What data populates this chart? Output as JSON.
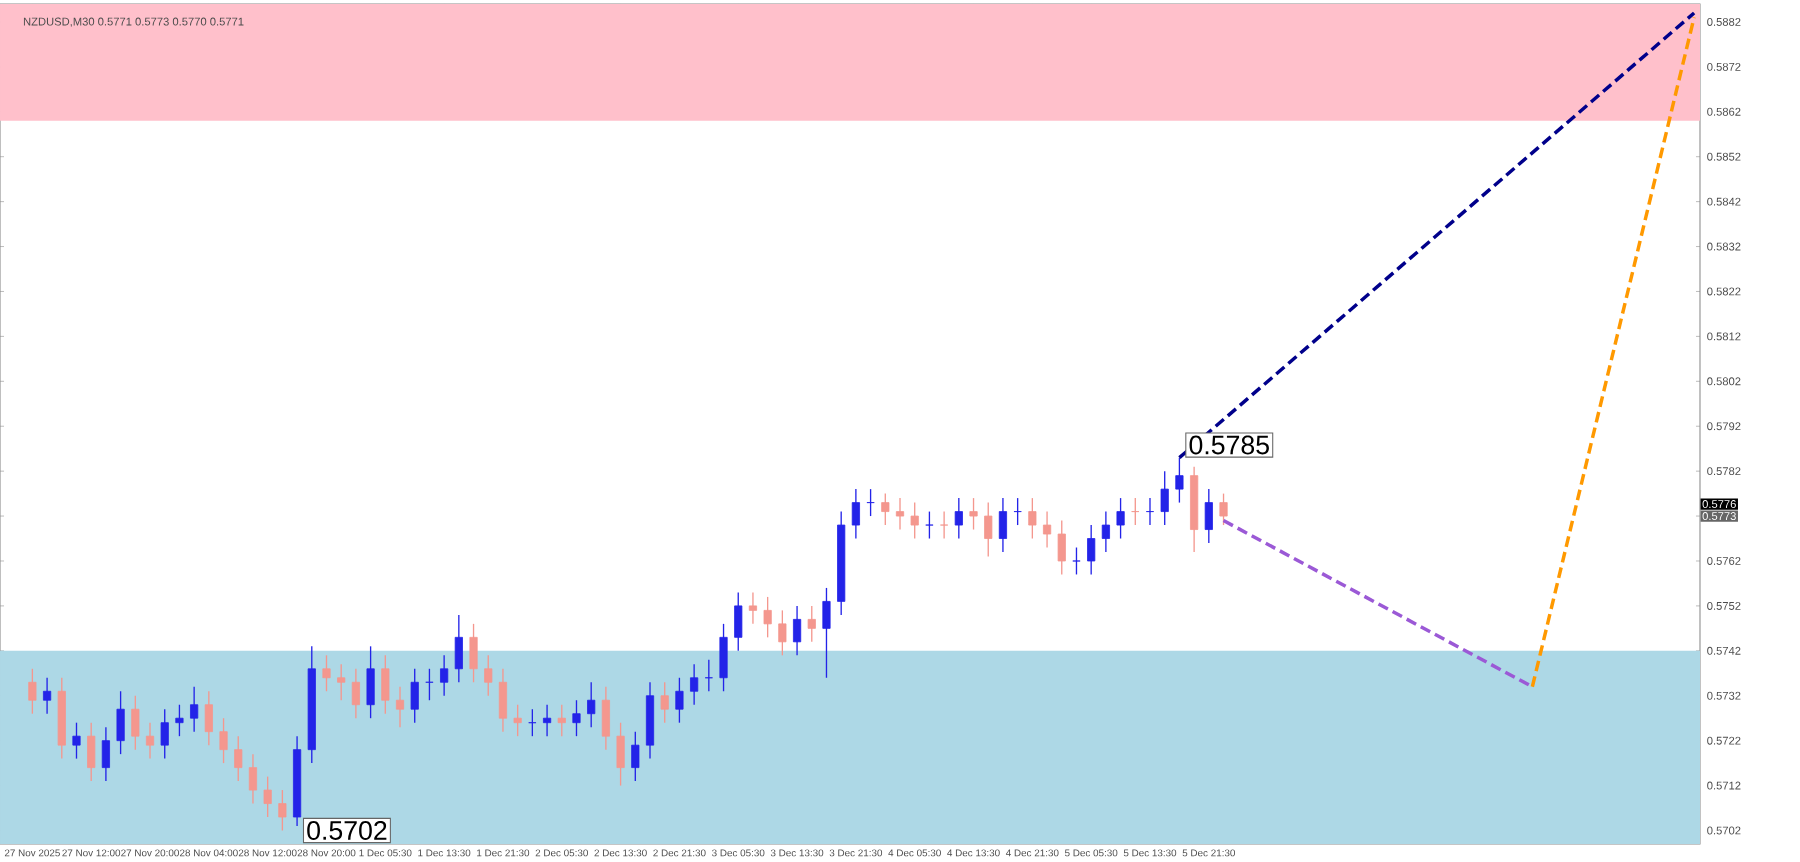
{
  "chart_data": {
    "type": "candlestick",
    "title": "NZDUSD,M30  0.5771 0.5773 0.5770 0.5771",
    "categories": [
      "27 Nov 2025",
      null,
      null,
      null,
      "27 Nov 12:00",
      null,
      null,
      null,
      "27 Nov 20:00",
      null,
      null,
      null,
      "28 Nov 04:00",
      null,
      null,
      null,
      "28 Nov 12:00",
      null,
      null,
      null,
      "28 Nov 20:00",
      null,
      null,
      null,
      "1 Dec 05:30",
      null,
      null,
      null,
      "1 Dec 13:30",
      null,
      null,
      null,
      "1 Dec 21:30",
      null,
      null,
      null,
      "2 Dec 05:30",
      null,
      null,
      null,
      "2 Dec 13:30",
      null,
      null,
      null,
      "2 Dec 21:30",
      null,
      null,
      null,
      "3 Dec 05:30",
      null,
      null,
      null,
      "3 Dec 13:30",
      null,
      null,
      null,
      "3 Dec 21:30",
      null,
      null,
      null,
      "4 Dec 05:30",
      null,
      null,
      null,
      "4 Dec 13:30",
      null,
      null,
      null,
      "4 Dec 21:30",
      null,
      null,
      null,
      "5 Dec 05:30",
      null,
      null,
      null,
      "5 Dec 13:30",
      null,
      null,
      null,
      "5 Dec 21:30",
      null,
      null,
      null,
      null,
      null,
      null,
      null,
      null,
      null,
      null,
      null,
      null,
      null,
      null,
      null,
      null,
      null,
      null,
      null,
      null,
      null,
      null,
      null,
      null,
      null,
      null,
      null,
      null,
      null,
      null,
      null,
      null,
      null
    ],
    "ohlc": [
      [
        0.5735,
        0.5738,
        0.5728,
        0.5731
      ],
      [
        0.5731,
        0.5736,
        0.5728,
        0.5733
      ],
      [
        0.5733,
        0.5736,
        0.5718,
        0.5721
      ],
      [
        0.5721,
        0.5726,
        0.5718,
        0.5723
      ],
      [
        0.5723,
        0.5726,
        0.5713,
        0.5716
      ],
      [
        0.5716,
        0.5725,
        0.5713,
        0.5722
      ],
      [
        0.5722,
        0.5733,
        0.5719,
        0.5729
      ],
      [
        0.5729,
        0.5732,
        0.572,
        0.5723
      ],
      [
        0.5723,
        0.5726,
        0.5718,
        0.5721
      ],
      [
        0.5721,
        0.5729,
        0.5718,
        0.5726
      ],
      [
        0.5726,
        0.573,
        0.5723,
        0.5727
      ],
      [
        0.5727,
        0.5734,
        0.5724,
        0.573
      ],
      [
        0.573,
        0.5733,
        0.5721,
        0.5724
      ],
      [
        0.5724,
        0.5727,
        0.5717,
        0.572
      ],
      [
        0.572,
        0.5723,
        0.5713,
        0.5716
      ],
      [
        0.5716,
        0.5719,
        0.5708,
        0.5711
      ],
      [
        0.5711,
        0.5714,
        0.5705,
        0.5708
      ],
      [
        0.5708,
        0.5711,
        0.5702,
        0.5705
      ],
      [
        0.5705,
        0.5723,
        0.5703,
        0.572
      ],
      [
        0.572,
        0.5743,
        0.5717,
        0.5738
      ],
      [
        0.5738,
        0.5741,
        0.5733,
        0.5736
      ],
      [
        0.5736,
        0.5739,
        0.5731,
        0.5735
      ],
      [
        0.5735,
        0.5738,
        0.5727,
        0.573
      ],
      [
        0.573,
        0.5743,
        0.5727,
        0.5738
      ],
      [
        0.5738,
        0.5741,
        0.5728,
        0.5731
      ],
      [
        0.5731,
        0.5734,
        0.5725,
        0.5729
      ],
      [
        0.5729,
        0.5738,
        0.5726,
        0.5735
      ],
      [
        0.5735,
        0.5738,
        0.5731,
        0.5735
      ],
      [
        0.5735,
        0.5741,
        0.5732,
        0.5738
      ],
      [
        0.5738,
        0.575,
        0.5735,
        0.5745
      ],
      [
        0.5745,
        0.5748,
        0.5735,
        0.5738
      ],
      [
        0.5738,
        0.5741,
        0.5732,
        0.5735
      ],
      [
        0.5735,
        0.5738,
        0.5724,
        0.5727
      ],
      [
        0.5727,
        0.573,
        0.5723,
        0.5726
      ],
      [
        0.5726,
        0.5729,
        0.5723,
        0.5726
      ],
      [
        0.5726,
        0.573,
        0.5723,
        0.5727
      ],
      [
        0.5727,
        0.573,
        0.5723,
        0.5726
      ],
      [
        0.5726,
        0.5731,
        0.5723,
        0.5728
      ],
      [
        0.5728,
        0.5735,
        0.5725,
        0.5731
      ],
      [
        0.5731,
        0.5734,
        0.572,
        0.5723
      ],
      [
        0.5723,
        0.5726,
        0.5712,
        0.5716
      ],
      [
        0.5716,
        0.5724,
        0.5713,
        0.5721
      ],
      [
        0.5721,
        0.5735,
        0.5718,
        0.5732
      ],
      [
        0.5732,
        0.5735,
        0.5726,
        0.5729
      ],
      [
        0.5729,
        0.5736,
        0.5726,
        0.5733
      ],
      [
        0.5733,
        0.5739,
        0.573,
        0.5736
      ],
      [
        0.5736,
        0.574,
        0.5733,
        0.5736
      ],
      [
        0.5736,
        0.5748,
        0.5733,
        0.5745
      ],
      [
        0.5745,
        0.5755,
        0.5742,
        0.5752
      ],
      [
        0.5752,
        0.5755,
        0.5748,
        0.5751
      ],
      [
        0.5751,
        0.5754,
        0.5745,
        0.5748
      ],
      [
        0.5748,
        0.5751,
        0.5741,
        0.5744
      ],
      [
        0.5744,
        0.5752,
        0.5741,
        0.5749
      ],
      [
        0.5749,
        0.5752,
        0.5744,
        0.5747
      ],
      [
        0.5747,
        0.5756,
        0.5736,
        0.5753
      ],
      [
        0.5753,
        0.5773,
        0.575,
        0.577
      ],
      [
        0.577,
        0.5778,
        0.5767,
        0.5775
      ],
      [
        0.5775,
        0.5778,
        0.5772,
        0.5775
      ],
      [
        0.5775,
        0.5777,
        0.577,
        0.5773
      ],
      [
        0.5773,
        0.5776,
        0.5769,
        0.5772
      ],
      [
        0.5772,
        0.5775,
        0.5767,
        0.577
      ],
      [
        0.577,
        0.5773,
        0.5767,
        0.577
      ],
      [
        0.577,
        0.5773,
        0.5767,
        0.577
      ],
      [
        0.577,
        0.5776,
        0.5767,
        0.5773
      ],
      [
        0.5773,
        0.5776,
        0.5769,
        0.5772
      ],
      [
        0.5772,
        0.5775,
        0.5763,
        0.5767
      ],
      [
        0.5767,
        0.5776,
        0.5764,
        0.5773
      ],
      [
        0.5773,
        0.5776,
        0.577,
        0.5773
      ],
      [
        0.5773,
        0.5776,
        0.5767,
        0.577
      ],
      [
        0.577,
        0.5773,
        0.5765,
        0.5768
      ],
      [
        0.5768,
        0.5771,
        0.5759,
        0.5762
      ],
      [
        0.5762,
        0.5765,
        0.5759,
        0.5762
      ],
      [
        0.5762,
        0.577,
        0.5759,
        0.5767
      ],
      [
        0.5767,
        0.5773,
        0.5764,
        0.577
      ],
      [
        0.577,
        0.5776,
        0.5767,
        0.5773
      ],
      [
        0.5773,
        0.5776,
        0.577,
        0.5773
      ],
      [
        0.5773,
        0.5776,
        0.577,
        0.5773
      ],
      [
        0.5773,
        0.5782,
        0.577,
        0.5778
      ],
      [
        0.5778,
        0.5785,
        0.5775,
        0.5781
      ],
      [
        0.5781,
        0.5783,
        0.5764,
        0.5769
      ],
      [
        0.5769,
        0.5778,
        0.5766,
        0.5775
      ],
      [
        0.5775,
        0.5777,
        0.577,
        0.5772
      ],
      null,
      null,
      null,
      null,
      null,
      null,
      null,
      null,
      null,
      null,
      null,
      null,
      null,
      null,
      null,
      null,
      null,
      null,
      null,
      null,
      null,
      null,
      null,
      null,
      null,
      null,
      null,
      null,
      null,
      null,
      null,
      null
    ],
    "colors": [
      "#f4978e",
      "#2323e8",
      "#f4978e",
      "#2323e8",
      "#f4978e",
      "#2323e8",
      "#2323e8",
      "#f4978e",
      "#f4978e",
      "#2323e8",
      "#2323e8",
      "#2323e8",
      "#f4978e",
      "#f4978e",
      "#f4978e",
      "#f4978e",
      "#f4978e",
      "#f4978e",
      "#2323e8",
      "#2323e8",
      "#f4978e",
      "#f4978e",
      "#f4978e",
      "#2323e8",
      "#f4978e",
      "#f4978e",
      "#2323e8",
      "#2323e8",
      "#2323e8",
      "#2323e8",
      "#f4978e",
      "#f4978e",
      "#f4978e",
      "#f4978e",
      "#2323e8",
      "#2323e8",
      "#f4978e",
      "#2323e8",
      "#2323e8",
      "#f4978e",
      "#f4978e",
      "#2323e8",
      "#2323e8",
      "#f4978e",
      "#2323e8",
      "#2323e8",
      "#2323e8",
      "#2323e8",
      "#2323e8",
      "#f4978e",
      "#f4978e",
      "#f4978e",
      "#2323e8",
      "#f4978e",
      "#2323e8",
      "#2323e8",
      "#2323e8",
      "#2323e8",
      "#f4978e",
      "#f4978e",
      "#f4978e",
      "#2323e8",
      "#f4978e",
      "#2323e8",
      "#f4978e",
      "#f4978e",
      "#2323e8",
      "#2323e8",
      "#f4978e",
      "#f4978e",
      "#f4978e",
      "#2323e8",
      "#2323e8",
      "#2323e8",
      "#2323e8",
      "#f4978e",
      "#2323e8",
      "#2323e8",
      "#2323e8",
      "#f4978e",
      "#2323e8",
      "#f4978e",
      null,
      null,
      null,
      null,
      null,
      null,
      null,
      null,
      null,
      null,
      null,
      null,
      null,
      null,
      null,
      null,
      null,
      null,
      null,
      null,
      null,
      null,
      null,
      null,
      null,
      null,
      null,
      null,
      null,
      null,
      null,
      null
    ],
    "series": [
      {
        "type": "line",
        "color": "#00008b",
        "line_style": "dashed",
        "values": [
          null,
          null,
          null,
          null,
          null,
          null,
          null,
          null,
          null,
          null,
          null,
          null,
          null,
          null,
          null,
          null,
          null,
          null,
          null,
          null,
          null,
          null,
          null,
          null,
          null,
          null,
          null,
          null,
          null,
          null,
          null,
          null,
          null,
          null,
          null,
          null,
          null,
          null,
          null,
          null,
          null,
          null,
          null,
          null,
          null,
          null,
          null,
          null,
          null,
          null,
          null,
          null,
          null,
          null,
          null,
          null,
          null,
          null,
          null,
          null,
          null,
          null,
          null,
          null,
          null,
          null,
          null,
          null,
          null,
          null,
          null,
          null,
          null,
          null,
          null,
          null,
          null,
          null,
          0.5785,
          null,
          null,
          null,
          null,
          null,
          null,
          null,
          null,
          null,
          null,
          null,
          null,
          null,
          null,
          null,
          null,
          null,
          null,
          null,
          null,
          null,
          null,
          null,
          null,
          null,
          null,
          null,
          null,
          null,
          null,
          null,
          null,
          null,
          null,
          0.5884
        ]
      },
      {
        "type": "line",
        "color": "#9b59d6",
        "line_style": "dashed",
        "values": [
          null,
          null,
          null,
          null,
          null,
          null,
          null,
          null,
          null,
          null,
          null,
          null,
          null,
          null,
          null,
          null,
          null,
          null,
          null,
          null,
          null,
          null,
          null,
          null,
          null,
          null,
          null,
          null,
          null,
          null,
          null,
          null,
          null,
          null,
          null,
          null,
          null,
          null,
          null,
          null,
          null,
          null,
          null,
          null,
          null,
          null,
          null,
          null,
          null,
          null,
          null,
          null,
          null,
          null,
          null,
          null,
          null,
          null,
          null,
          null,
          null,
          null,
          null,
          null,
          null,
          null,
          null,
          null,
          null,
          null,
          null,
          null,
          null,
          null,
          null,
          null,
          null,
          null,
          null,
          null,
          null,
          0.5771,
          null,
          null,
          null,
          null,
          null,
          null,
          null,
          null,
          null,
          null,
          null,
          null,
          null,
          null,
          null,
          null,
          null,
          null,
          null,
          null,
          0.5734,
          null,
          null,
          null,
          null,
          null,
          null,
          null,
          null,
          null,
          null,
          null
        ]
      },
      {
        "type": "line",
        "color": "#ff9900",
        "line_style": "dashed",
        "values": [
          null,
          null,
          null,
          null,
          null,
          null,
          null,
          null,
          null,
          null,
          null,
          null,
          null,
          null,
          null,
          null,
          null,
          null,
          null,
          null,
          null,
          null,
          null,
          null,
          null,
          null,
          null,
          null,
          null,
          null,
          null,
          null,
          null,
          null,
          null,
          null,
          null,
          null,
          null,
          null,
          null,
          null,
          null,
          null,
          null,
          null,
          null,
          null,
          null,
          null,
          null,
          null,
          null,
          null,
          null,
          null,
          null,
          null,
          null,
          null,
          null,
          null,
          null,
          null,
          null,
          null,
          null,
          null,
          null,
          null,
          null,
          null,
          null,
          null,
          null,
          null,
          null,
          null,
          null,
          null,
          null,
          null,
          null,
          null,
          null,
          null,
          null,
          null,
          null,
          null,
          null,
          null,
          null,
          null,
          null,
          null,
          null,
          null,
          null,
          null,
          null,
          null,
          0.5734,
          null,
          null,
          null,
          null,
          null,
          null,
          null,
          null,
          null,
          null,
          0.5883
        ]
      }
    ],
    "ylim": [
      0.5699,
      0.5886
    ],
    "yticks": [
      0.5702,
      0.5712,
      0.5722,
      0.5732,
      0.5742,
      0.5752,
      0.5762,
      {
        "value": 0.5772,
        "label": null
      },
      0.5782,
      0.5792,
      0.5802,
      0.5812,
      0.5822,
      0.5832,
      0.5842,
      0.5852,
      0.5862,
      0.5872,
      0.5882
    ],
    "bands": [
      {
        "axis": "y",
        "from": 0.586,
        "to": 0.5886,
        "color": "#ffc0cb"
      },
      {
        "axis": "y",
        "from": 0.5699,
        "to": 0.5742,
        "color": "#add8e6"
      }
    ],
    "annotations": [
      "0.5785",
      "0.5702",
      "0.5776",
      "0.5773"
    ],
    "grid": false
  }
}
